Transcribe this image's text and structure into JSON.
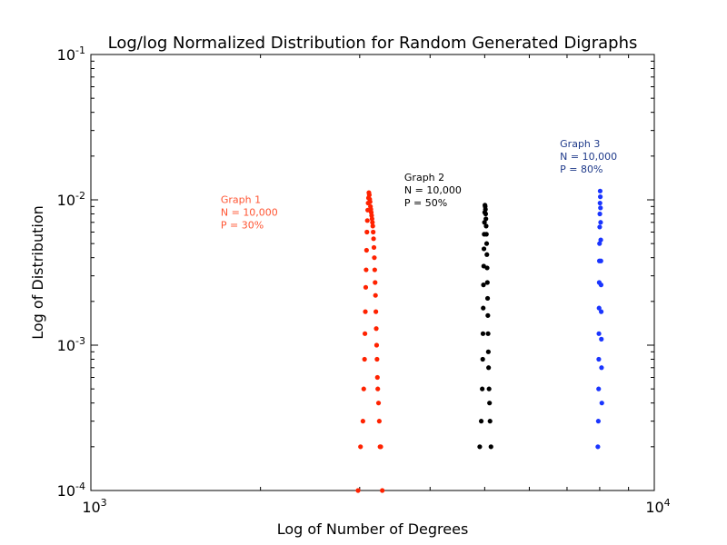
{
  "chart_data": {
    "type": "scatter",
    "title": "Log/log Normalized Distribution for Random Generated Digraphs",
    "xlabel": "Log of Number of Degrees",
    "ylabel": "Log of Distribution",
    "xscale": "log",
    "yscale": "log",
    "xlim": [
      1000,
      10000
    ],
    "ylim": [
      0.0001,
      0.1
    ],
    "grid": false,
    "x_ticks": [
      {
        "value": 1000,
        "base": "10",
        "exp": "3"
      },
      {
        "value": 10000,
        "base": "10",
        "exp": "4"
      }
    ],
    "y_ticks": [
      {
        "value": 0.0001,
        "base": "10",
        "exp": "-4"
      },
      {
        "value": 0.001,
        "base": "10",
        "exp": "-3"
      },
      {
        "value": 0.01,
        "base": "10",
        "exp": "-2"
      },
      {
        "value": 0.1,
        "base": "10",
        "exp": "-1"
      }
    ],
    "x_minor_ticks": [
      2000,
      3000,
      4000,
      5000,
      6000,
      7000,
      8000,
      9000
    ],
    "series": [
      {
        "color": "#ff2200",
        "annotation": {
          "lines": [
            "Graph 1",
            "N = 10,000",
            "P = 30%"
          ],
          "color": "#ff5533",
          "x": 1700,
          "y": 0.0095
        },
        "x": [
          2980,
          3010,
          3040,
          3050,
          3060,
          3065,
          3070,
          3075,
          3080,
          3085,
          3090,
          3095,
          3100,
          3105,
          3110,
          3115,
          3120,
          3125,
          3130,
          3135,
          3140,
          3145,
          3150,
          3155,
          3160,
          3165,
          3170,
          3175,
          3180,
          3185,
          3190,
          3195,
          3200,
          3205,
          3210,
          3215,
          3220,
          3225,
          3230,
          3240,
          3250,
          3260,
          3270,
          3290
        ],
        "y": [
          0.0001,
          0.0002,
          0.0003,
          0.0005,
          0.0008,
          0.0012,
          0.0017,
          0.0025,
          0.0033,
          0.0045,
          0.006,
          0.0072,
          0.0085,
          0.0095,
          0.0103,
          0.0112,
          0.0108,
          0.0101,
          0.0097,
          0.009,
          0.0086,
          0.0082,
          0.0078,
          0.0074,
          0.007,
          0.0066,
          0.006,
          0.0054,
          0.0047,
          0.004,
          0.0033,
          0.0027,
          0.0022,
          0.0017,
          0.0013,
          0.001,
          0.0008,
          0.0006,
          0.0005,
          0.0004,
          0.0003,
          0.0002,
          0.0002,
          0.0001
        ]
      },
      {
        "color": "#000000",
        "annotation": {
          "lines": [
            "Graph 2",
            "N = 10,000",
            "P = 50%"
          ],
          "color": "#000000",
          "x": 3600,
          "y": 0.0135
        },
        "x": [
          4900,
          4930,
          4950,
          4960,
          4965,
          4970,
          4975,
          4980,
          4985,
          4990,
          4995,
          5000,
          5005,
          5010,
          5015,
          5020,
          5025,
          5030,
          5035,
          5040,
          5045,
          5050,
          5055,
          5060,
          5065,
          5070,
          5075,
          5080,
          5090,
          5100,
          5110,
          5130
        ],
        "y": [
          0.0002,
          0.0003,
          0.0005,
          0.0008,
          0.0012,
          0.0018,
          0.0026,
          0.0035,
          0.0046,
          0.0058,
          0.007,
          0.0082,
          0.0092,
          0.009,
          0.0086,
          0.008,
          0.0074,
          0.0066,
          0.0058,
          0.005,
          0.0042,
          0.0034,
          0.0027,
          0.0021,
          0.0016,
          0.0012,
          0.0009,
          0.0007,
          0.0005,
          0.0004,
          0.0003,
          0.0002
        ]
      },
      {
        "color": "#1a35ff",
        "annotation": {
          "lines": [
            "Graph 3",
            "N = 10,000",
            "P = 80%"
          ],
          "color": "#1f3a8a",
          "x": 6800,
          "y": 0.023
        },
        "x": [
          7940,
          7955,
          7965,
          7970,
          7975,
          7980,
          7985,
          7990,
          7995,
          8000,
          8005,
          8010,
          8015,
          8020,
          8025,
          8030,
          8035,
          8040,
          8045,
          8050,
          8055,
          8060,
          8070
        ],
        "y": [
          0.0002,
          0.0003,
          0.0005,
          0.0008,
          0.0012,
          0.0018,
          0.0027,
          0.0038,
          0.005,
          0.0065,
          0.008,
          0.0095,
          0.0115,
          0.0105,
          0.0088,
          0.007,
          0.0053,
          0.0038,
          0.0026,
          0.0017,
          0.0011,
          0.0007,
          0.0004
        ]
      }
    ]
  }
}
